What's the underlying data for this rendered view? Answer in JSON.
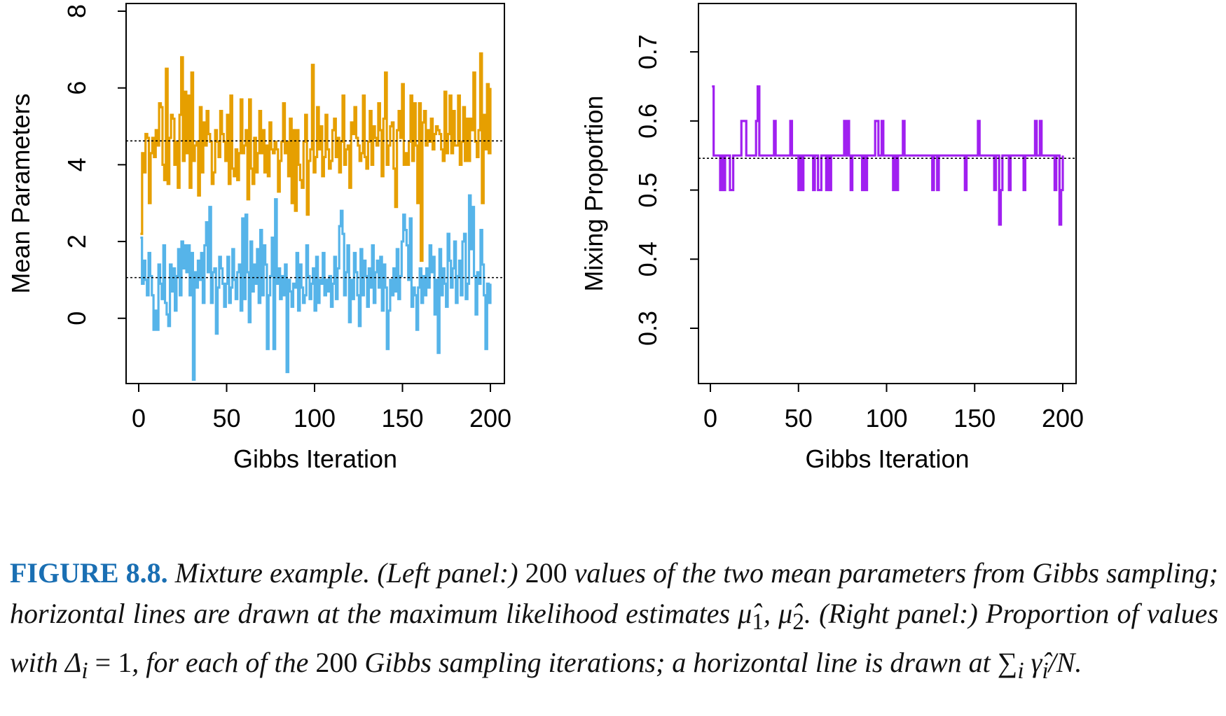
{
  "chart_data": [
    {
      "type": "line",
      "step": true,
      "xlabel": "Gibbs Iteration",
      "ylabel": "Mean Parameters",
      "xlim": [
        0,
        200
      ],
      "ylim": [
        -1.7,
        8.2
      ],
      "xticks": [
        0,
        50,
        100,
        150,
        200
      ],
      "xtick_labels": [
        "0",
        "50",
        "100",
        "150",
        "200"
      ],
      "yticks": [
        0,
        2,
        4,
        6,
        8
      ],
      "ytick_labels": [
        "0",
        "2",
        "4",
        "6",
        "8"
      ],
      "grid": false,
      "legend": false,
      "hlines": [
        4.62,
        1.06
      ],
      "series": [
        {
          "color": "#E69F00",
          "values": [
            2.2,
            4.3,
            3.8,
            4.8,
            4.7,
            3.0,
            4.3,
            4.7,
            4.2,
            4.9,
            4.5,
            5.6,
            5.5,
            4.0,
            3.6,
            6.5,
            3.5,
            4.7,
            5.3,
            5.2,
            4.0,
            4.6,
            3.4,
            5.3,
            6.8,
            4.1,
            5.9,
            4.3,
            5.8,
            3.4,
            6.4,
            4.1,
            4.5,
            4.6,
            3.2,
            5.5,
            3.8,
            5.1,
            4.5,
            5.4,
            4.8,
            4.6,
            3.5,
            3.8,
            4.9,
            4.6,
            4.2,
            5.4,
            4.8,
            4.6,
            4.1,
            5.3,
            3.5,
            5.8,
            3.9,
            3.7,
            4.4,
            3.6,
            4.3,
            5.7,
            4.3,
            4.5,
            4.9,
            3.1,
            5.7,
            3.9,
            3.5,
            4.7,
            3.8,
            4.3,
            5.4,
            4.3,
            4.9,
            3.8,
            4.5,
            3.7,
            5.1,
            4.4,
            4.3,
            4.6,
            4.4,
            3.3,
            4.1,
            4.6,
            5.6,
            4.3,
            4.6,
            3.7,
            5.2,
            3.0,
            4.9,
            2.8,
            4.9,
            4.0,
            3.6,
            3.4,
            4.6,
            5.3,
            2.7,
            4.1,
            4.4,
            6.6,
            3.8,
            4.2,
            5.5,
            4.4,
            5.0,
            3.7,
            4.2,
            5.3,
            4.4,
            3.9,
            4.1,
            4.9,
            5.2,
            4.2,
            4.7,
            3.8,
            4.6,
            5.8,
            4.0,
            4.4,
            4.5,
            3.4,
            5.1,
            4.8,
            5.5,
            4.7,
            4.5,
            4.1,
            4.3,
            5.8,
            4.2,
            3.9,
            4.6,
            5.4,
            4.0,
            5.0,
            4.7,
            4.5,
            5.6,
            4.9,
            3.7,
            5.2,
            6.4,
            4.0,
            4.5,
            5.0,
            5.1,
            3.9,
            2.9,
            4.9,
            5.4,
            4.7,
            6.1,
            4.0,
            4.3,
            4.0,
            4.6,
            5.8,
            4.1,
            5.6,
            4.5,
            3.0,
            5.6,
            1.5,
            5.1,
            5.4,
            4.5,
            4.9,
            4.6,
            5.2,
            4.4,
            4.8,
            5.0,
            4.9,
            4.8,
            4.4,
            4.1,
            5.9,
            4.3,
            4.8,
            5.8,
            4.3,
            5.4,
            4.5,
            4.5,
            5.8,
            4.0,
            4.6,
            5.5,
            4.1,
            5.2,
            4.1,
            5.2,
            4.9,
            6.4,
            4.6,
            4.2,
            4.9,
            6.9,
            3.0,
            5.3,
            4.4,
            6.1,
            4.3,
            6.0
          ]
        },
        {
          "color": "#56B4E9",
          "values": [
            2.1,
            0.9,
            1.5,
            1.0,
            0.6,
            1.7,
            1.1,
            0.6,
            -0.3,
            0.2,
            -0.3,
            1.4,
            0.9,
            0.5,
            1.9,
            0.4,
            0.1,
            -0.2,
            1.4,
            0.7,
            1.3,
            0.2,
            1.1,
            1.8,
            0.6,
            2.0,
            1.3,
            1.9,
            1.2,
            1.9,
            0.6,
            1.7,
            -1.6,
            1.2,
            0.8,
            1.5,
            1.0,
            1.7,
            0.4,
            1.9,
            2.5,
            1.2,
            2.9,
            0.4,
            1.2,
            1.3,
            -0.4,
            0.8,
            1.6,
            1.3,
            0.9,
            0.3,
            0.9,
            1.6,
            0.4,
            0.8,
            1.8,
            1.0,
            0.5,
            1.2,
            1.4,
            0.2,
            2.6,
            0.5,
            2.7,
            1.2,
            -0.1,
            2.0,
            0.7,
            1.4,
            0.9,
            1.8,
            0.4,
            2.3,
            0.6,
            1.9,
            1.4,
            -0.8,
            0.6,
            1.1,
            2.1,
            -0.8,
            3.1,
            0.9,
            1.3,
            0.5,
            1.1,
            0.6,
            1.4,
            -1.4,
            1.0,
            0.7,
            0.3,
            0.9,
            0.8,
            1.7,
            0.2,
            1.4,
            0.8,
            0.4,
            0.6,
            1.9,
            1.1,
            0.5,
            0.9,
            1.3,
            0.2,
            1.6,
            0.4,
            1.0,
            0.9,
            1.7,
            0.6,
            1.0,
            0.7,
            1.1,
            0.3,
            0.9,
            1.6,
            0.5,
            1.3,
            2.4,
            2.8,
            2.2,
            0.6,
            1.2,
            1.9,
            -0.1,
            1.0,
            0.5,
            1.7,
            1.2,
            0.6,
            -0.2,
            1.8,
            0.6,
            1.5,
            1.1,
            0.3,
            1.3,
            0.8,
            1.9,
            0.4,
            1.2,
            1.5,
            0.8,
            1.6,
            0.2,
            1.4,
            0.8,
            -0.8,
            0.2,
            1.0,
            0.6,
            1.3,
            0.7,
            1.8,
            0.5,
            1.1,
            2.0,
            2.7,
            2.3,
            1.9,
            1.0,
            2.6,
            0.3,
            0.8,
            0.6,
            -0.3,
            0.8,
            1.3,
            0.4,
            1.1,
            0.6,
            1.3,
            0.8,
            1.9,
            1.2,
            1.6,
            0.1,
            1.0,
            -0.9,
            1.8,
            0.6,
            1.3,
            0.9,
            0.3,
            2.2,
            1.5,
            0.8,
            1.3,
            2.0,
            0.4,
            1.1,
            1.5,
            0.6,
            2.0,
            2.2,
            0.5,
            0.9,
            3.2,
            1.8,
            2.9,
            1.1,
            0.1,
            1.2,
            0.9,
            2.3,
            1.4,
            0.6,
            -0.8,
            0.9,
            0.4,
            0.9
          ]
        }
      ]
    },
    {
      "type": "line",
      "step": true,
      "xlabel": "Gibbs Iteration",
      "ylabel": "Mixing Proportion",
      "xlim": [
        0,
        200
      ],
      "ylim": [
        0.22,
        0.77
      ],
      "xticks": [
        0,
        50,
        100,
        150,
        200
      ],
      "xtick_labels": [
        "0",
        "50",
        "100",
        "150",
        "200"
      ],
      "yticks": [
        0.3,
        0.4,
        0.5,
        0.6,
        0.7
      ],
      "ytick_labels": [
        "0.3",
        "0.4",
        "0.5",
        "0.6",
        "0.7"
      ],
      "grid": false,
      "legend": false,
      "hlines": [
        0.546
      ],
      "series": [
        {
          "color": "#A020F0",
          "values": [
            0.65,
            0.55,
            0.55,
            0.55,
            0.55,
            0.5,
            0.55,
            0.5,
            0.55,
            0.55,
            0.55,
            0.5,
            0.5,
            0.55,
            0.55,
            0.55,
            0.55,
            0.55,
            0.6,
            0.6,
            0.6,
            0.55,
            0.55,
            0.55,
            0.55,
            0.55,
            0.55,
            0.6,
            0.65,
            0.55,
            0.55,
            0.55,
            0.55,
            0.55,
            0.55,
            0.55,
            0.55,
            0.55,
            0.6,
            0.55,
            0.55,
            0.55,
            0.55,
            0.55,
            0.55,
            0.55,
            0.55,
            0.55,
            0.6,
            0.55,
            0.55,
            0.55,
            0.55,
            0.5,
            0.55,
            0.5,
            0.55,
            0.55,
            0.55,
            0.55,
            0.55,
            0.55,
            0.5,
            0.55,
            0.55,
            0.5,
            0.5,
            0.55,
            0.55,
            0.55,
            0.5,
            0.55,
            0.5,
            0.55,
            0.55,
            0.55,
            0.55,
            0.55,
            0.55,
            0.55,
            0.55,
            0.6,
            0.55,
            0.6,
            0.55,
            0.5,
            0.55,
            0.55,
            0.55,
            0.55,
            0.55,
            0.55,
            0.5,
            0.55,
            0.5,
            0.55,
            0.55,
            0.55,
            0.55,
            0.55,
            0.6,
            0.6,
            0.55,
            0.55,
            0.6,
            0.55,
            0.55,
            0.55,
            0.55,
            0.55,
            0.55,
            0.5,
            0.55,
            0.5,
            0.55,
            0.55,
            0.55,
            0.6,
            0.55,
            0.55,
            0.55,
            0.55,
            0.55,
            0.55,
            0.55,
            0.55,
            0.55,
            0.55,
            0.55,
            0.55,
            0.55,
            0.55,
            0.55,
            0.55,
            0.55,
            0.5,
            0.55,
            0.55,
            0.5,
            0.55,
            0.55,
            0.55,
            0.55,
            0.55,
            0.55,
            0.55,
            0.55,
            0.55,
            0.55,
            0.55,
            0.55,
            0.55,
            0.55,
            0.55,
            0.55,
            0.5,
            0.55,
            0.55,
            0.55,
            0.55,
            0.55,
            0.55,
            0.55,
            0.6,
            0.55,
            0.55,
            0.55,
            0.55,
            0.55,
            0.55,
            0.55,
            0.55,
            0.55,
            0.5,
            0.55,
            0.55,
            0.45,
            0.5,
            0.55,
            0.55,
            0.55,
            0.55,
            0.5,
            0.55,
            0.55,
            0.55,
            0.55,
            0.55,
            0.55,
            0.55,
            0.55,
            0.5,
            0.55,
            0.55,
            0.55,
            0.55,
            0.55,
            0.55,
            0.6,
            0.55,
            0.55,
            0.6,
            0.55,
            0.55,
            0.55,
            0.55,
            0.55,
            0.55,
            0.55,
            0.55,
            0.5,
            0.55,
            0.55,
            0.45,
            0.5,
            0.55
          ]
        }
      ]
    }
  ],
  "caption": {
    "label": "FIGURE 8.8.",
    "text_1": " Mixture example. (Left panel:) ",
    "num_1": "200",
    "text_2": " values of the two mean parameters from Gibbs sampling; horizontal lines are drawn at the maximum likelihood estimates μ̂",
    "sub_1": "1",
    "text_3": ", μ̂",
    "sub_2": "2",
    "text_4": ". (Right panel:) Proportion of values with Δ",
    "sub_3": "i",
    "eq_1": " = 1",
    "text_5": ", for each of the ",
    "num_2": "200",
    "text_6": " Gibbs sampling iterations; a horizontal line is drawn at ∑",
    "sub_4": "i",
    "text_7": " γ̂",
    "sub_5": "i",
    "text_8": "/N."
  }
}
